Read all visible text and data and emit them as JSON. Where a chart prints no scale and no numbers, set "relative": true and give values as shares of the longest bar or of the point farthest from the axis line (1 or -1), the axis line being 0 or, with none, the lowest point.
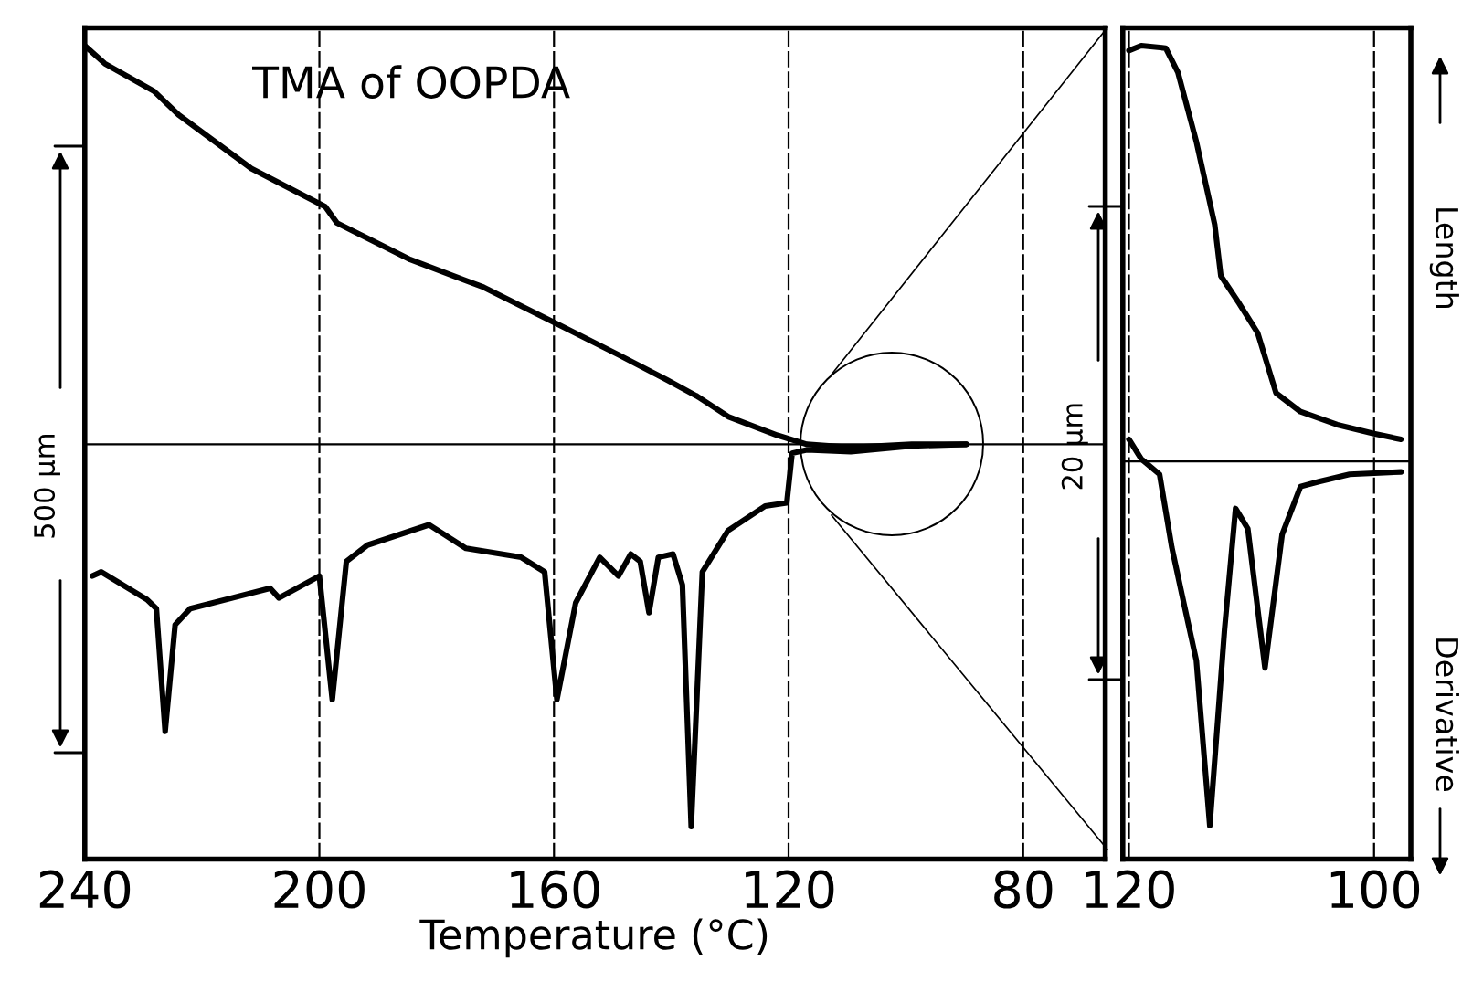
{
  "chart_data": [
    {
      "type": "line",
      "title": "TMA of OOPDA",
      "xlabel": "Temperature (°C)",
      "relative": true,
      "xlim": [
        240,
        66
      ],
      "xticks": [
        240,
        200,
        160,
        120,
        80
      ],
      "grid": "x",
      "annotations": [
        "500 µm"
      ],
      "ref_lines": [
        {
          "axis": "y",
          "value": 0.51,
          "color": "#000000"
        }
      ],
      "series": [
        {
          "color": "#000000",
          "x": [
            240,
            236.6,
            228.2,
            224,
            211.6,
            199,
            197,
            184.5,
            172,
            159.5,
            149,
            140.7,
            135.6,
            130.3,
            121.9,
            116.9,
            109.4,
            99,
            89.7
          ],
          "values": [
            1.0,
            0.978,
            0.944,
            0.915,
            0.849,
            0.802,
            0.782,
            0.737,
            0.703,
            0.658,
            0.62,
            0.589,
            0.569,
            0.544,
            0.521,
            0.51,
            0.506,
            0.51,
            0.51
          ]
        },
        {
          "color": "#000000",
          "x": [
            238.7,
            237.2,
            229.4,
            227.8,
            226.3,
            224.6,
            222,
            208.4,
            206.9,
            200,
            197.8,
            195.4,
            191.8,
            181.3,
            175,
            165.6,
            161.6,
            159.5,
            156.3,
            152.2,
            149,
            146.9,
            145.3,
            143.8,
            142.2,
            139.7,
            138.1,
            136.6,
            134.7,
            130.3,
            124,
            120.3,
            119.4,
            116.9,
            109.4,
            99,
            89.7
          ],
          "values": [
            0.348,
            0.353,
            0.319,
            0.308,
            0.157,
            0.288,
            0.308,
            0.333,
            0.321,
            0.348,
            0.196,
            0.366,
            0.386,
            0.411,
            0.382,
            0.371,
            0.353,
            0.196,
            0.315,
            0.371,
            0.348,
            0.375,
            0.366,
            0.303,
            0.371,
            0.375,
            0.337,
            0.04,
            0.353,
            0.404,
            0.434,
            0.438,
            0.499,
            0.503,
            0.501,
            0.508,
            0.51
          ]
        }
      ]
    },
    {
      "type": "line",
      "relative": true,
      "xlim": [
        120.5,
        97
      ],
      "xticks": [
        120,
        100
      ],
      "grid": "x",
      "annotations": [
        "20 µm",
        "Length",
        "Derivative"
      ],
      "ref_lines": [
        {
          "axis": "y",
          "value": 0.489,
          "color": "#000000"
        }
      ],
      "series": [
        {
          "color": "#000000",
          "x": [
            120,
            119,
            117,
            116,
            114.5,
            113,
            112.5,
            111,
            109.5,
            108,
            106,
            103,
            100,
            97.8
          ],
          "values": [
            0.994,
            1.0,
            0.997,
            0.967,
            0.882,
            0.78,
            0.717,
            0.683,
            0.647,
            0.573,
            0.55,
            0.534,
            0.523,
            0.516
          ]
        },
        {
          "color": "#000000",
          "x": [
            120,
            119,
            117.5,
            116.5,
            115.5,
            114.5,
            113.4,
            112.2,
            111.3,
            110.3,
            108.9,
            107.5,
            106,
            104.5,
            102,
            97.8
          ],
          "values": [
            0.516,
            0.492,
            0.473,
            0.383,
            0.313,
            0.244,
            0.041,
            0.282,
            0.431,
            0.406,
            0.235,
            0.399,
            0.458,
            0.464,
            0.473,
            0.476
          ]
        }
      ]
    }
  ]
}
